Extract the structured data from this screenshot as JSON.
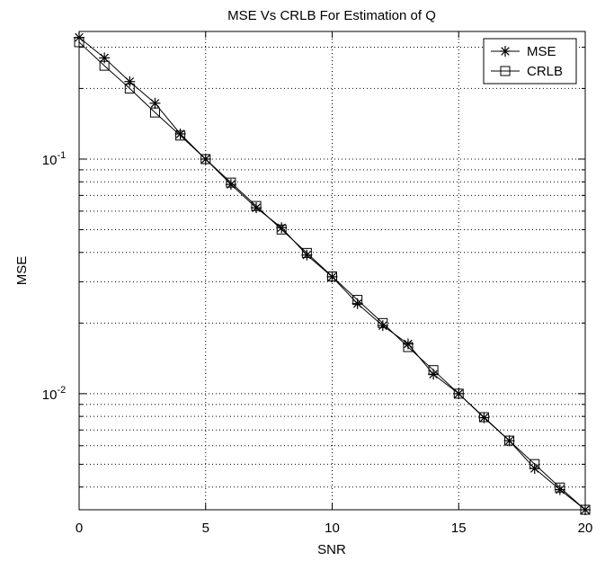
{
  "chart_data": {
    "type": "line",
    "title": "MSE Vs CRLB For Estimation of Q",
    "xlabel": "SNR",
    "ylabel": "MSE",
    "xlim": [
      0,
      20
    ],
    "ylim": [
      0.0032,
      0.35
    ],
    "yscale": "log",
    "grid": true,
    "grid_style": "dotted",
    "legend_position": "top-right",
    "x_ticks": [
      0,
      5,
      10,
      15,
      20
    ],
    "y_major_ticks": [
      {
        "value": 0.1,
        "base": "10",
        "exp": "-1"
      },
      {
        "value": 0.01,
        "base": "10",
        "exp": "-2"
      }
    ],
    "x": [
      0,
      1,
      2,
      3,
      4,
      5,
      6,
      7,
      8,
      9,
      10,
      11,
      12,
      13,
      14,
      15,
      16,
      17,
      18,
      19,
      20
    ],
    "series": [
      {
        "name": "MSE",
        "marker": "asterisk",
        "color": "#000000",
        "values": [
          0.33,
          0.27,
          0.214,
          0.173,
          0.128,
          0.1,
          0.078,
          0.062,
          0.051,
          0.039,
          0.0315,
          0.0242,
          0.0195,
          0.0163,
          0.0121,
          0.01,
          0.0079,
          0.0063,
          0.0048,
          0.0039,
          0.0032
        ]
      },
      {
        "name": "CRLB",
        "marker": "square",
        "color": "#000000",
        "values": [
          0.315,
          0.25,
          0.2,
          0.158,
          0.126,
          0.1,
          0.0794,
          0.0631,
          0.0501,
          0.0398,
          0.0316,
          0.0251,
          0.02,
          0.0158,
          0.0126,
          0.01,
          0.00794,
          0.00631,
          0.00501,
          0.00398,
          0.0032
        ]
      }
    ]
  }
}
